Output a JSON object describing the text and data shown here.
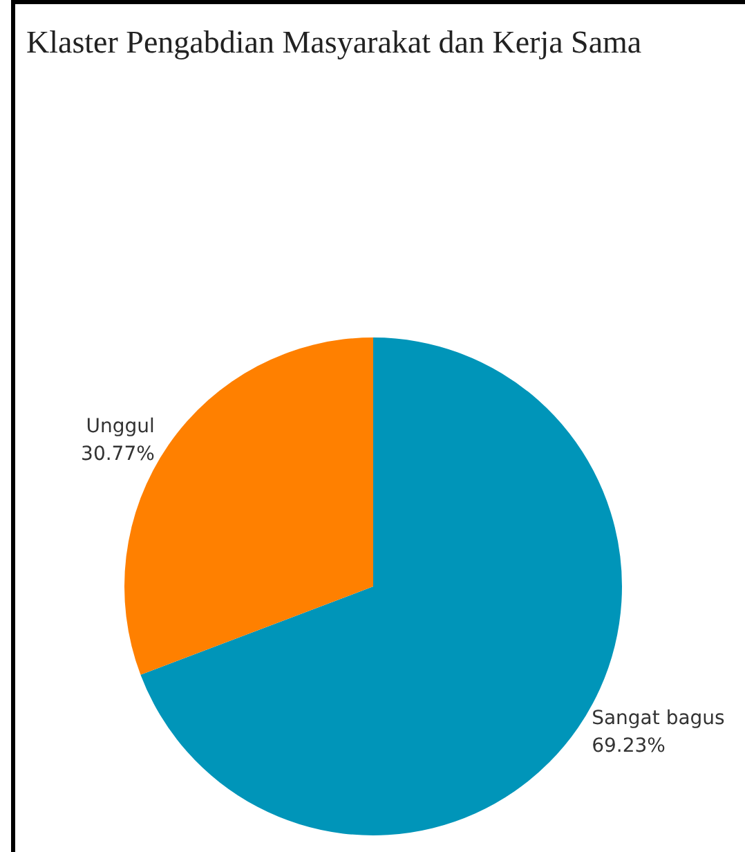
{
  "chart_data": {
    "type": "pie",
    "title": "Klaster Pengabdian Masyarakat dan Kerja Sama",
    "categories": [
      "Sangat bagus",
      "Unggul"
    ],
    "values": [
      69.23,
      30.77
    ],
    "colors": [
      "#0095b9",
      "#ff8000"
    ],
    "value_labels": [
      "69.23%",
      "30.77%"
    ]
  }
}
